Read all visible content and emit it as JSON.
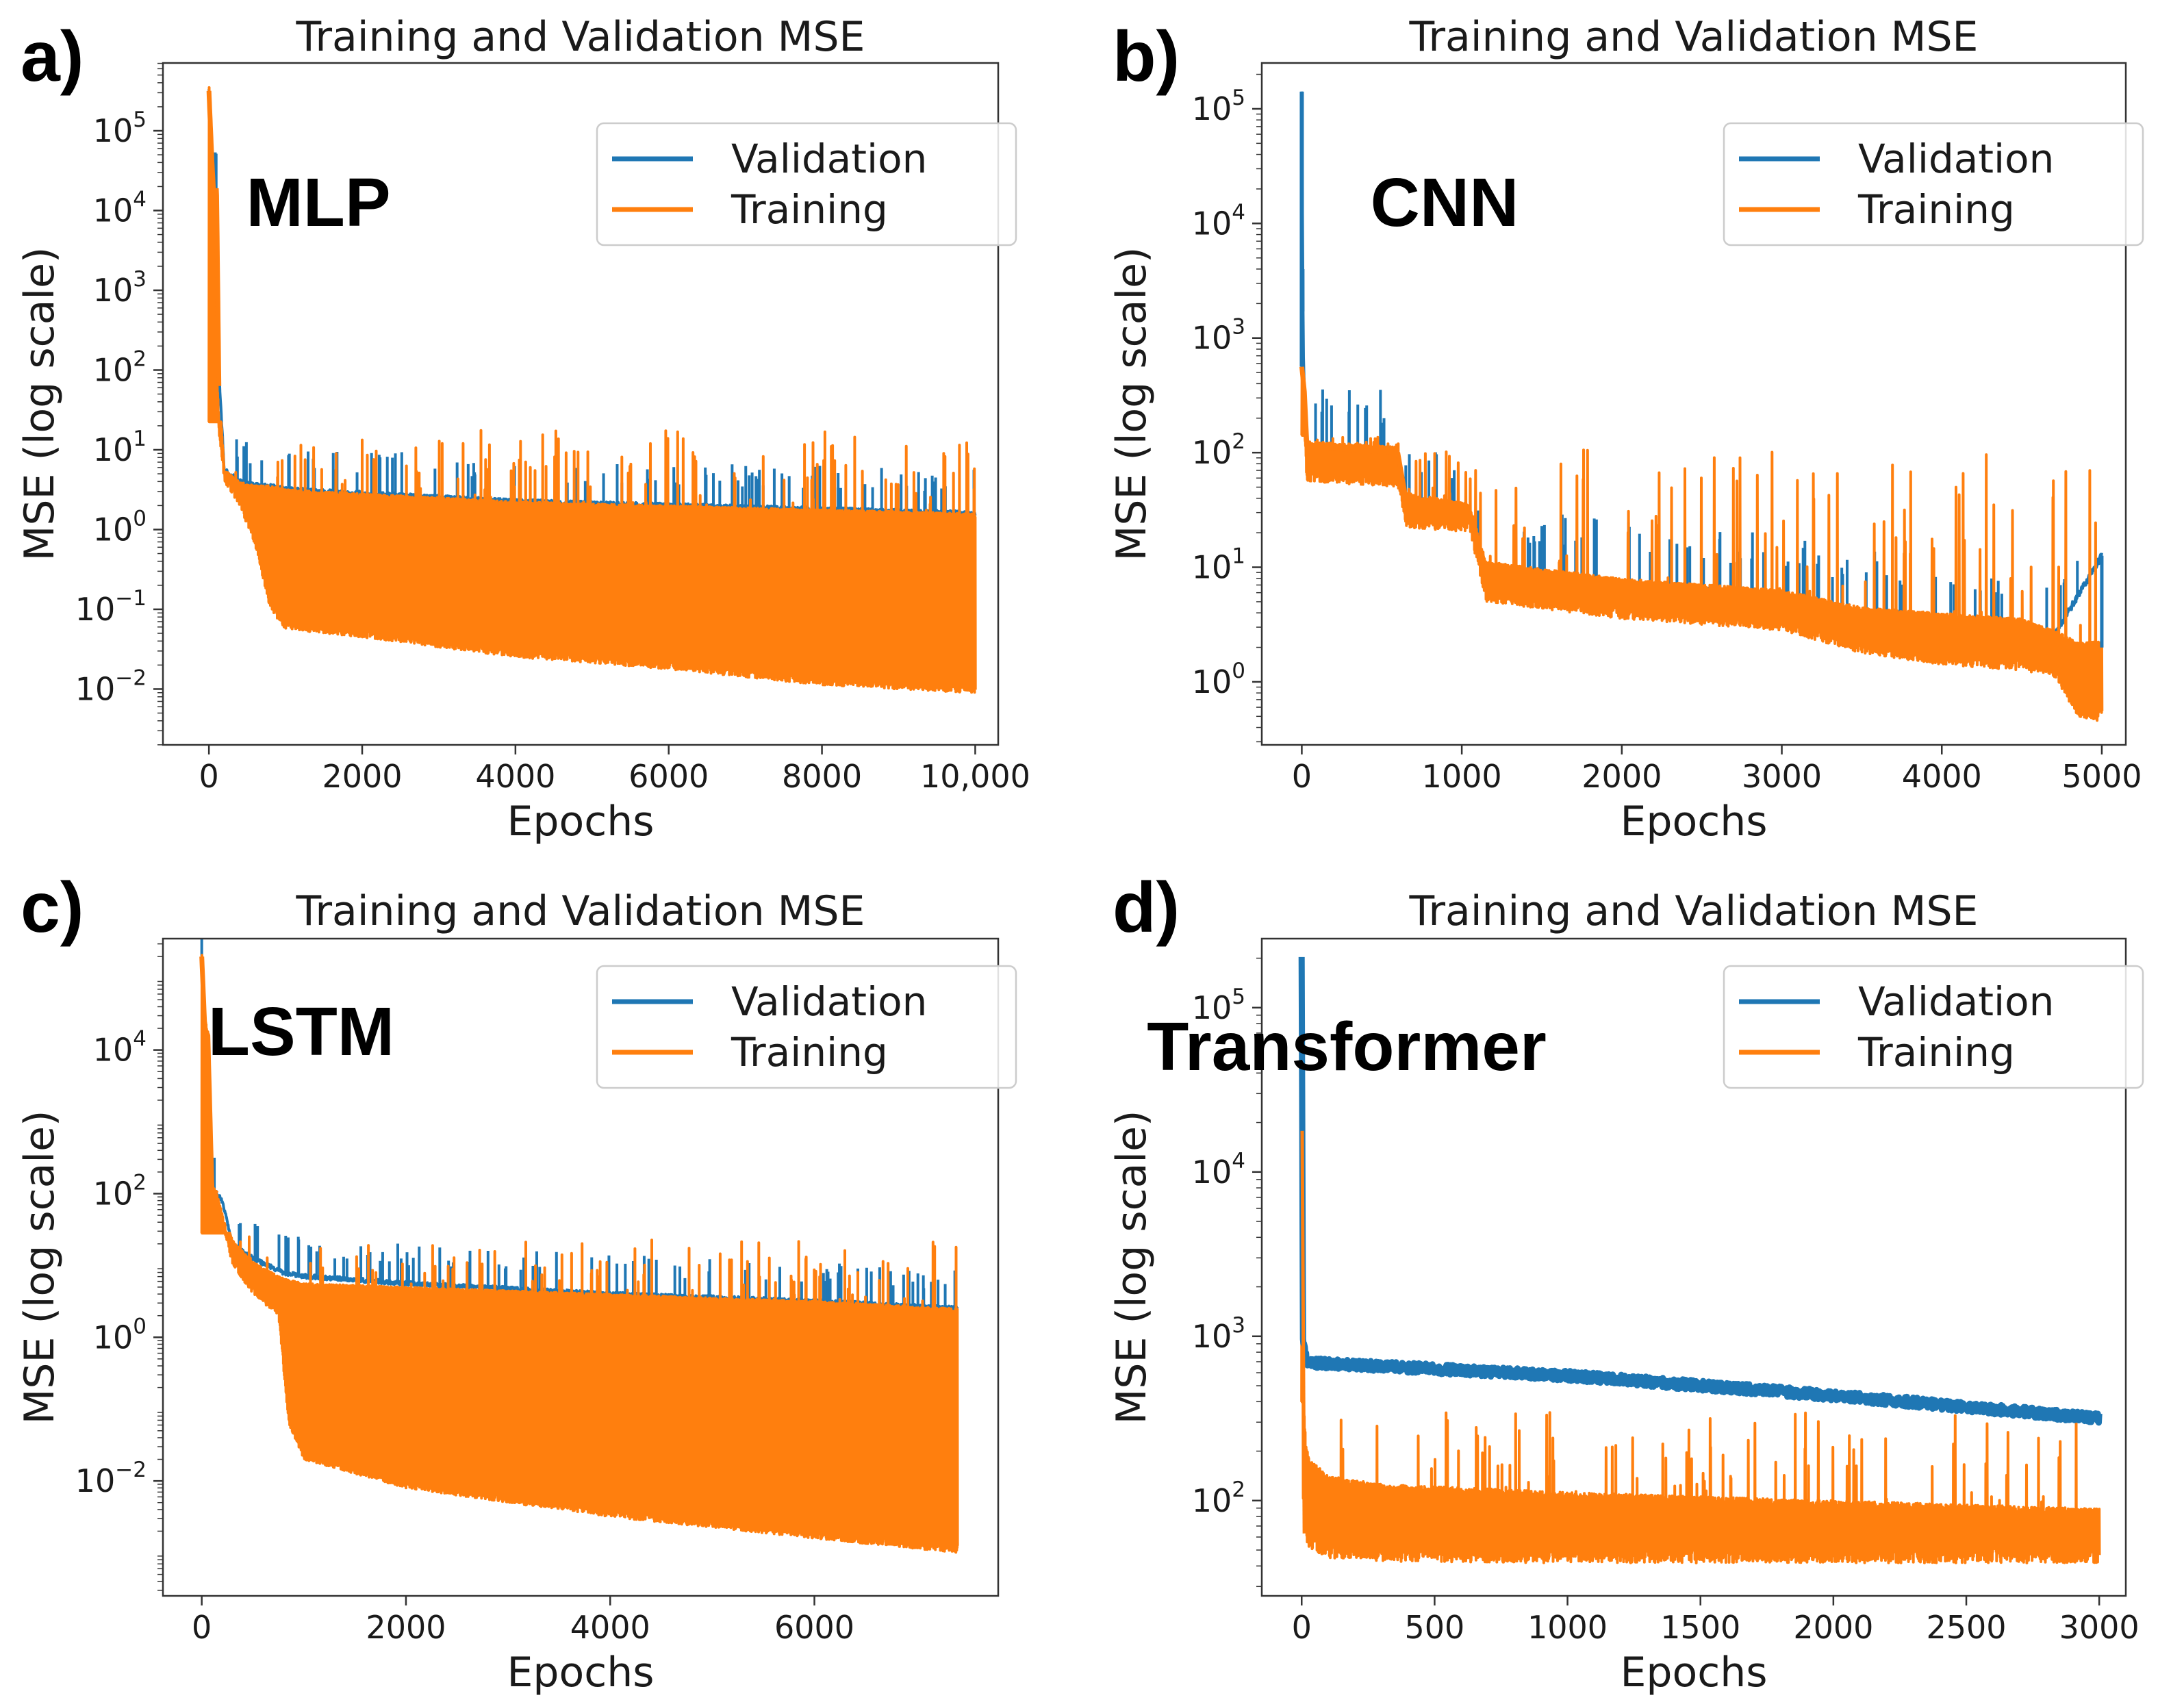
{
  "figure": {
    "panels": [
      "a)",
      "b)",
      "c)",
      "d)"
    ]
  },
  "colors": {
    "validation": "#1f77b4",
    "training": "#ff7f0e",
    "axes": "#333333",
    "legend_border": "#cccccc"
  },
  "chart_data": [
    {
      "panel": "a)",
      "type": "line",
      "title": "Training and Validation MSE",
      "model_label": "MLP",
      "xlabel": "Epochs",
      "ylabel": "MSE (log scale)",
      "yscale": "log",
      "xlim": [
        -600,
        10300
      ],
      "ylim_exp": [
        -2.7,
        5.85
      ],
      "x_ticks": [
        {
          "value": 0,
          "label": "0"
        },
        {
          "value": 2000,
          "label": "2000"
        },
        {
          "value": 4000,
          "label": "4000"
        },
        {
          "value": 6000,
          "label": "6000"
        },
        {
          "value": 8000,
          "label": "8000"
        },
        {
          "value": 10000,
          "label": "10,000"
        }
      ],
      "y_ticks": [
        {
          "exp": -2,
          "base": "10",
          "sup": "−2"
        },
        {
          "exp": -1,
          "base": "10",
          "sup": "−1"
        },
        {
          "exp": 0,
          "base": "10",
          "sup": "0"
        },
        {
          "exp": 1,
          "base": "10",
          "sup": "1"
        },
        {
          "exp": 2,
          "base": "10",
          "sup": "2"
        },
        {
          "exp": 3,
          "base": "10",
          "sup": "3"
        },
        {
          "exp": 4,
          "base": "10",
          "sup": "4"
        },
        {
          "exp": 5,
          "base": "10",
          "sup": "5"
        }
      ],
      "legend": [
        "Validation",
        "Training"
      ],
      "series": [
        {
          "name": "Validation",
          "x": [
            0,
            40,
            60,
            100,
            130,
            200,
            400,
            600,
            800,
            1000,
            2000,
            4000,
            6000,
            8000,
            10000
          ],
          "upper_log10": [
            5.55,
            4.6,
            4.25,
            4.25,
            2.0,
            0.75,
            0.6,
            0.55,
            0.55,
            0.5,
            0.45,
            0.35,
            0.3,
            0.25,
            0.2
          ]
        },
        {
          "name": "Training",
          "x": [
            0,
            40,
            60,
            100,
            130,
            200,
            400,
            600,
            800,
            1000,
            2000,
            4000,
            6000,
            8000,
            10000
          ],
          "upper_log10": [
            5.5,
            4.6,
            4.25,
            4.25,
            1.8,
            0.7,
            0.55,
            0.5,
            0.5,
            0.45,
            0.4,
            0.3,
            0.25,
            0.2,
            0.15
          ],
          "lower_log10": [
            5.5,
            4.6,
            4.25,
            2.0,
            1.2,
            0.6,
            0.3,
            -0.2,
            -1.0,
            -1.25,
            -1.35,
            -1.6,
            -1.75,
            -1.95,
            -2.05
          ],
          "spike_max_log10": 1.35
        }
      ]
    },
    {
      "panel": "b)",
      "type": "line",
      "title": "Training and Validation MSE",
      "model_label": "CNN",
      "xlabel": "Epochs",
      "ylabel": "MSE (log scale)",
      "yscale": "log",
      "xlim": [
        -250,
        5150
      ],
      "ylim_exp": [
        -0.55,
        5.4
      ],
      "x_ticks": [
        {
          "value": 0,
          "label": "0"
        },
        {
          "value": 1000,
          "label": "1000"
        },
        {
          "value": 2000,
          "label": "2000"
        },
        {
          "value": 3000,
          "label": "3000"
        },
        {
          "value": 4000,
          "label": "4000"
        },
        {
          "value": 5000,
          "label": "5000"
        }
      ],
      "y_ticks": [
        {
          "exp": 0,
          "base": "10",
          "sup": "0"
        },
        {
          "exp": 1,
          "base": "10",
          "sup": "1"
        },
        {
          "exp": 2,
          "base": "10",
          "sup": "2"
        },
        {
          "exp": 3,
          "base": "10",
          "sup": "3"
        },
        {
          "exp": 4,
          "base": "10",
          "sup": "4"
        },
        {
          "exp": 5,
          "base": "10",
          "sup": "5"
        }
      ],
      "legend": [
        "Validation",
        "Training"
      ],
      "series": [
        {
          "name": "Validation",
          "x": [
            0,
            10,
            30,
            600,
            650,
            1050,
            1150,
            2000,
            3000,
            3500,
            4000,
            4500,
            4700,
            5000
          ],
          "upper_log10": [
            5.15,
            2.85,
            2.05,
            2.0,
            1.6,
            1.5,
            1.0,
            0.85,
            0.75,
            0.6,
            0.55,
            0.5,
            0.4,
            1.1
          ]
        },
        {
          "name": "Training",
          "x": [
            0,
            10,
            30,
            600,
            650,
            1050,
            1150,
            2000,
            3000,
            3500,
            4000,
            4500,
            4700,
            4850,
            5000
          ],
          "upper_log10": [
            2.75,
            2.75,
            2.05,
            2.0,
            1.6,
            1.5,
            1.0,
            0.85,
            0.75,
            0.6,
            0.55,
            0.5,
            0.4,
            0.3,
            0.3
          ],
          "lower_log10": [
            2.75,
            2.4,
            1.75,
            1.7,
            1.35,
            1.3,
            0.7,
            0.55,
            0.45,
            0.25,
            0.15,
            0.1,
            0.05,
            -0.3,
            -0.35
          ],
          "spike_max_log10": 2.15
        }
      ]
    },
    {
      "panel": "c)",
      "type": "line",
      "title": "Training and Validation MSE",
      "model_label": "LSTM",
      "xlabel": "Epochs",
      "ylabel": "MSE (log scale)",
      "yscale": "log",
      "xlim": [
        -380,
        7800
      ],
      "ylim_exp": [
        -3.6,
        5.55
      ],
      "x_ticks": [
        {
          "value": 0,
          "label": "0"
        },
        {
          "value": 2000,
          "label": "2000"
        },
        {
          "value": 4000,
          "label": "4000"
        },
        {
          "value": 6000,
          "label": "6000"
        }
      ],
      "y_ticks": [
        {
          "exp": -2,
          "base": "10",
          "sup": "−2"
        },
        {
          "exp": 0,
          "base": "10",
          "sup": "0"
        },
        {
          "exp": 2,
          "base": "10",
          "sup": "2"
        },
        {
          "exp": 4,
          "base": "10",
          "sup": "4"
        }
      ],
      "legend": [
        "Validation",
        "Training"
      ],
      "series": [
        {
          "name": "Validation",
          "x": [
            0,
            30,
            60,
            100,
            150,
            200,
            300,
            500,
            800,
            1000,
            2000,
            4000,
            6000,
            7400
          ],
          "upper_log10": [
            5.3,
            4.3,
            4.2,
            2.05,
            2.0,
            1.9,
            1.3,
            1.1,
            0.9,
            0.85,
            0.75,
            0.6,
            0.5,
            0.4
          ]
        },
        {
          "name": "Training",
          "x": [
            0,
            30,
            60,
            100,
            150,
            200,
            300,
            500,
            750,
            850,
            1000,
            2000,
            4000,
            6000,
            7400
          ],
          "upper_log10": [
            5.3,
            4.3,
            4.2,
            2.05,
            2.0,
            1.9,
            1.3,
            1.0,
            0.8,
            0.75,
            0.7,
            0.65,
            0.55,
            0.45,
            0.35
          ],
          "lower_log10": [
            5.3,
            4.3,
            4.2,
            2.05,
            1.9,
            1.6,
            1.0,
            0.6,
            0.3,
            -1.2,
            -1.7,
            -2.1,
            -2.5,
            -2.8,
            -3.0
          ],
          "spike_max_log10": 1.45
        }
      ]
    },
    {
      "panel": "d)",
      "type": "line",
      "title": "Training and Validation MSE",
      "model_label": "Transformer",
      "xlabel": "Epochs",
      "ylabel": "MSE (log scale)",
      "yscale": "log",
      "xlim": [
        -150,
        3100
      ],
      "ylim_exp": [
        1.42,
        5.42
      ],
      "x_ticks": [
        {
          "value": 0,
          "label": "0"
        },
        {
          "value": 500,
          "label": "500"
        },
        {
          "value": 1000,
          "label": "1000"
        },
        {
          "value": 1500,
          "label": "1500"
        },
        {
          "value": 2000,
          "label": "2000"
        },
        {
          "value": 2500,
          "label": "2500"
        },
        {
          "value": 3000,
          "label": "3000"
        }
      ],
      "y_ticks": [
        {
          "exp": 2,
          "base": "10",
          "sup": "2"
        },
        {
          "exp": 3,
          "base": "10",
          "sup": "3"
        },
        {
          "exp": 4,
          "base": "10",
          "sup": "4"
        },
        {
          "exp": 5,
          "base": "10",
          "sup": "5"
        }
      ],
      "legend": [
        "Validation",
        "Training"
      ],
      "series": [
        {
          "name": "Validation",
          "x": [
            0,
            5,
            20,
            1000,
            2000,
            3000
          ],
          "upper_log10": [
            5.3,
            3.0,
            2.84,
            2.76,
            2.64,
            2.5
          ]
        },
        {
          "name": "Training",
          "x": [
            0,
            5,
            15,
            30,
            100,
            300,
            1000,
            2000,
            3000
          ],
          "upper_log10": [
            4.25,
            2.7,
            2.3,
            2.2,
            2.1,
            2.05,
            2.0,
            1.95,
            1.9
          ],
          "lower_log10": [
            4.25,
            2.0,
            1.75,
            1.7,
            1.65,
            1.63,
            1.62,
            1.62,
            1.62
          ],
          "spike_max_log10": 2.6
        }
      ]
    }
  ]
}
